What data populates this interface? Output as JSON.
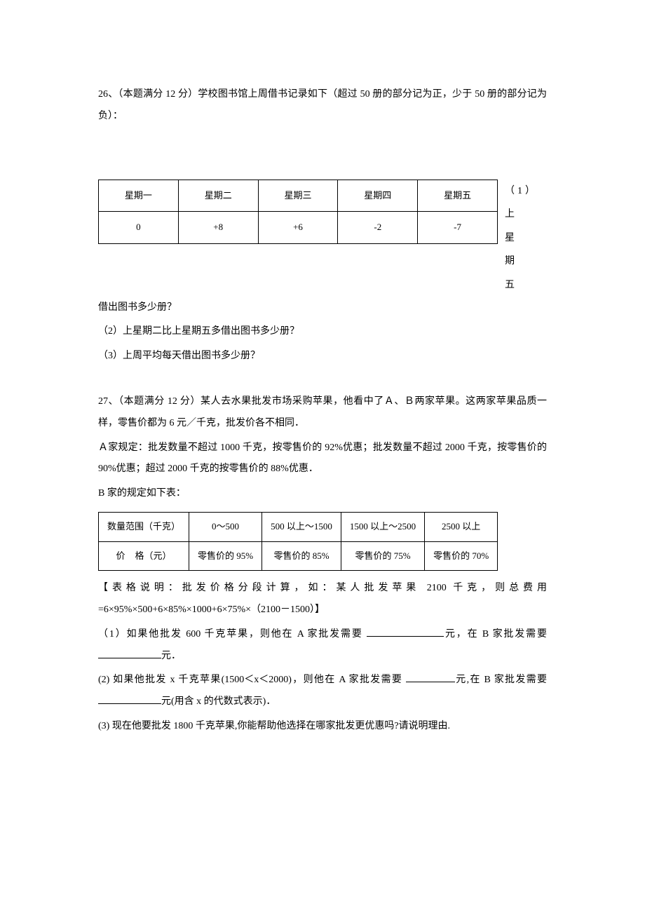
{
  "q26": {
    "prompt": "26、（本题满分 12 分）学校图书馆上周借书记录如下（超过 50 册的部分记为正，少于 50 册的部分记为负）：",
    "table": {
      "headers": [
        "星期一",
        "星期二",
        "星期三",
        "星期四",
        "星期五"
      ],
      "values": [
        "0",
        "+8",
        "+6",
        "-2",
        "-7"
      ]
    },
    "side_text_1": "（1）",
    "side_text_2": "上　星",
    "side_text_3": "期　五",
    "cont": "借出图书多少册？",
    "sub2": "（2）上星期二比上星期五多借出图书多少册？",
    "sub3": "（3）上周平均每天借出图书多少册？"
  },
  "q27": {
    "prompt1": "27、（本题满分 12 分）某人去水果批发市场采购苹果，他看中了Ａ、Ｂ两家苹果。这两家苹果品质一样，零售价都为 6 元／千克，批发价各不相同．",
    "ruleA": "Ａ家规定：批发数量不超过 1000 千克，按零售价的 92%优惠；批发数量不超过 2000 千克，按零售价的 90%优惠；超过 2000 千克的按零售价的 88%优惠．",
    "ruleB_intro": "B 家的规定如下表：",
    "table": {
      "row1": [
        "数量范围（千克）",
        "0～500",
        "500 以上～1500",
        "1500 以上～2500",
        "2500 以上"
      ],
      "row2_label_part1": "价",
      "row2_label_part2": "格（元）",
      "row2": [
        "零售价的 95%",
        "零售价的 85%",
        "零售价的 75%",
        "零售价的 70%"
      ]
    },
    "table_note": "【表格说明：批发价格分段计算，如：某人批发苹果 2100 千克，则总费用=6×95%×500+6×85%×1000+6×75%×（2100－1500）】",
    "sub1_a": "（1）如果他批发 600 千克苹果，则他在 A 家批发需要 ",
    "sub1_b": "元，在 B 家批发需要 ",
    "sub1_c": "元．",
    "sub2_a": "(2) 如果他批发 x 千克苹果(1500＜x＜2000)，则他在 A 家批发需要 ",
    "sub2_b": "元,在 B 家批发需要 ",
    "sub2_c": "元(用含 x 的代数式表示)．",
    "sub3": "(3) 现在他要批发 1800 千克苹果,你能帮助他选择在哪家批发更优惠吗?请说明理由."
  }
}
